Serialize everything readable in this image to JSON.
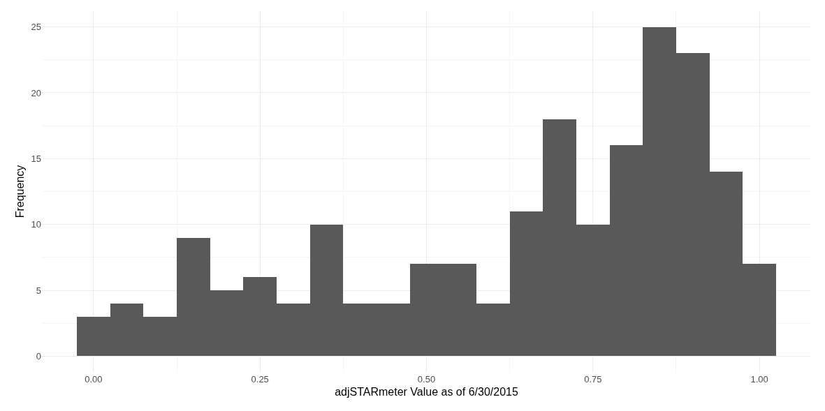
{
  "chart_data": {
    "type": "histogram",
    "xlabel": "adjSTARmeter Value as of 6/30/2015",
    "ylabel": "Frequency",
    "bins": [
      -0.025,
      0.025,
      0.075,
      0.125,
      0.175,
      0.225,
      0.275,
      0.325,
      0.375,
      0.425,
      0.475,
      0.525,
      0.575,
      0.625,
      0.675,
      0.725,
      0.775,
      0.825,
      0.875,
      0.925,
      0.975,
      1.025
    ],
    "values": [
      3,
      4,
      3,
      9,
      5,
      6,
      4,
      10,
      4,
      4,
      7,
      7,
      4,
      11,
      18,
      10,
      16,
      25,
      23,
      14,
      7
    ],
    "color": "#595959",
    "xlim": [
      -0.0775,
      1.0775
    ],
    "xticks": [
      {
        "value": 0,
        "label": "0.00"
      },
      {
        "value": 0.25,
        "label": "0.25"
      },
      {
        "value": 0.5,
        "label": "0.50"
      },
      {
        "value": 0.75,
        "label": "0.75"
      },
      {
        "value": 1,
        "label": "1.00"
      }
    ],
    "ylim": [
      -1.25,
      26.25
    ],
    "yticks": [
      0,
      5,
      10,
      15,
      20,
      25
    ],
    "grid": true
  }
}
